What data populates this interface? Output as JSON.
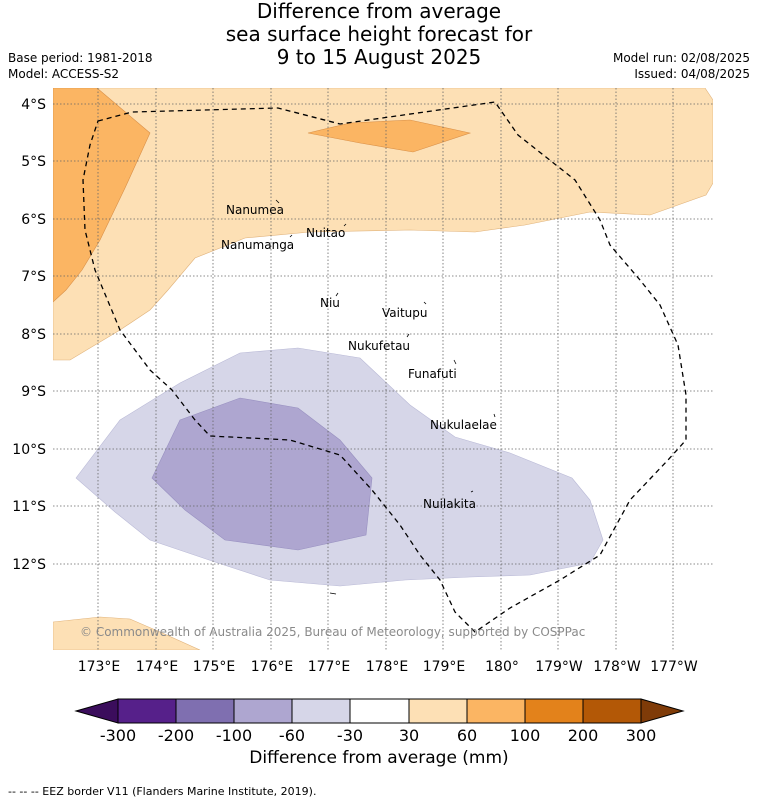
{
  "header": {
    "title_lines": [
      "Difference from average",
      "sea surface height forecast for",
      "9 to 15 August 2025"
    ],
    "base_period": "Base period: 1981-2018",
    "model": "Model: ACCESS-S2",
    "model_run": "Model run: 02/08/2025",
    "issued": "Issued: 04/08/2025"
  },
  "map": {
    "lat_labels": [
      "4°S",
      "5°S",
      "6°S",
      "7°S",
      "8°S",
      "9°S",
      "10°S",
      "11°S",
      "12°S"
    ],
    "lon_labels": [
      "173°E",
      "174°E",
      "175°E",
      "176°E",
      "177°E",
      "178°E",
      "179°E",
      "180°",
      "179°W",
      "178°W",
      "177°W"
    ],
    "islands": [
      "Nanumea",
      "Nuitao",
      "Nanumanga",
      "Niu",
      "Vaitupu",
      "Nukufetau",
      "Funafuti",
      "Nukulaelae",
      "Nuilakita"
    ],
    "copyright": "© Commonwealth of Australia 2025, Bureau of Meteorology, supported by COSPPac"
  },
  "legend": {
    "ticks": [
      "-300",
      "-200",
      "-100",
      "-60",
      "-30",
      "30",
      "60",
      "100",
      "200",
      "300"
    ],
    "colors": [
      "#3b0d5c",
      "#56208a",
      "#7f6fb0",
      "#aea6d0",
      "#d6d6e8",
      "#ffffff",
      "#fde0b5",
      "#fbb563",
      "#e3821b",
      "#b35806",
      "#7f3b08"
    ],
    "title": "Difference from average (mm)"
  },
  "footer": {
    "eez_note": "--  --  -- EEZ border V11 (Flanders Marine Institute, 2019)."
  }
}
